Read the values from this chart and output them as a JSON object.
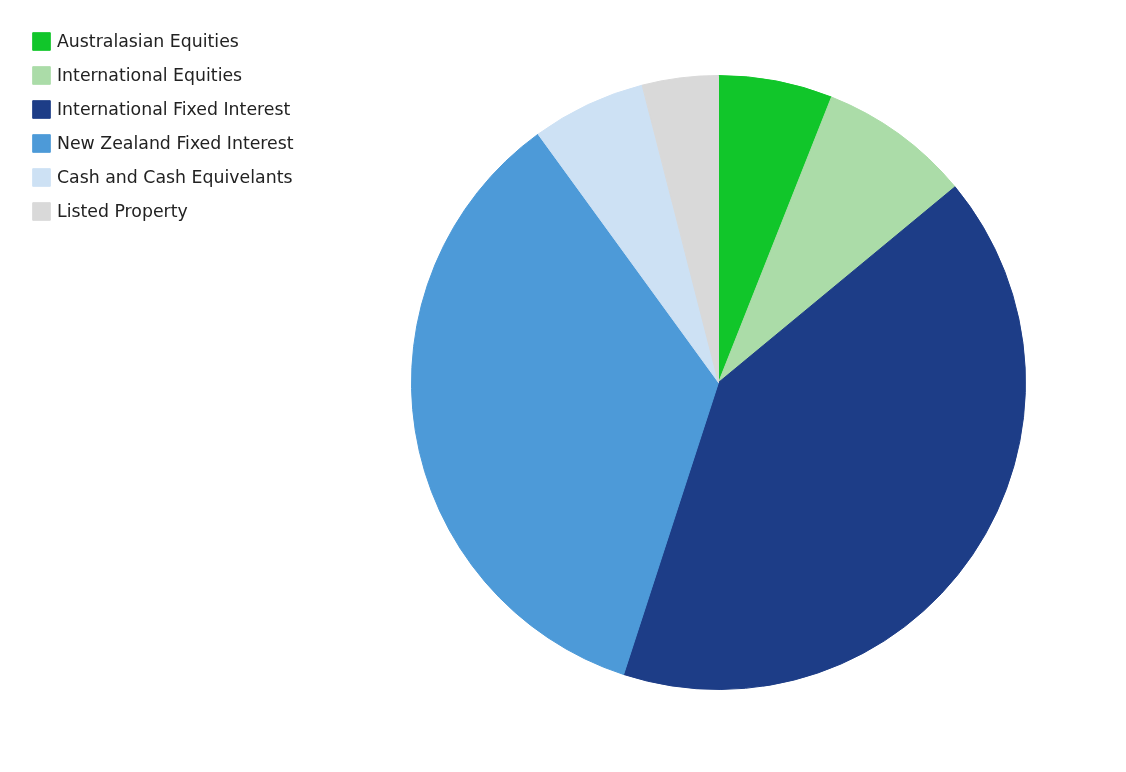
{
  "chart_data": {
    "type": "pie",
    "categories": [
      "Australasian Equities",
      "International Equities",
      "International Fixed Interest",
      "New Zealand Fixed Interest",
      "Cash and Cash Equivelants",
      "Listed Property"
    ],
    "values": [
      6,
      8,
      41,
      35,
      6,
      4
    ],
    "colors": [
      "#11c62a",
      "#abdca8",
      "#1d3d87",
      "#4d9ad8",
      "#cde1f4",
      "#d9d9d9"
    ],
    "legend": "top left"
  }
}
